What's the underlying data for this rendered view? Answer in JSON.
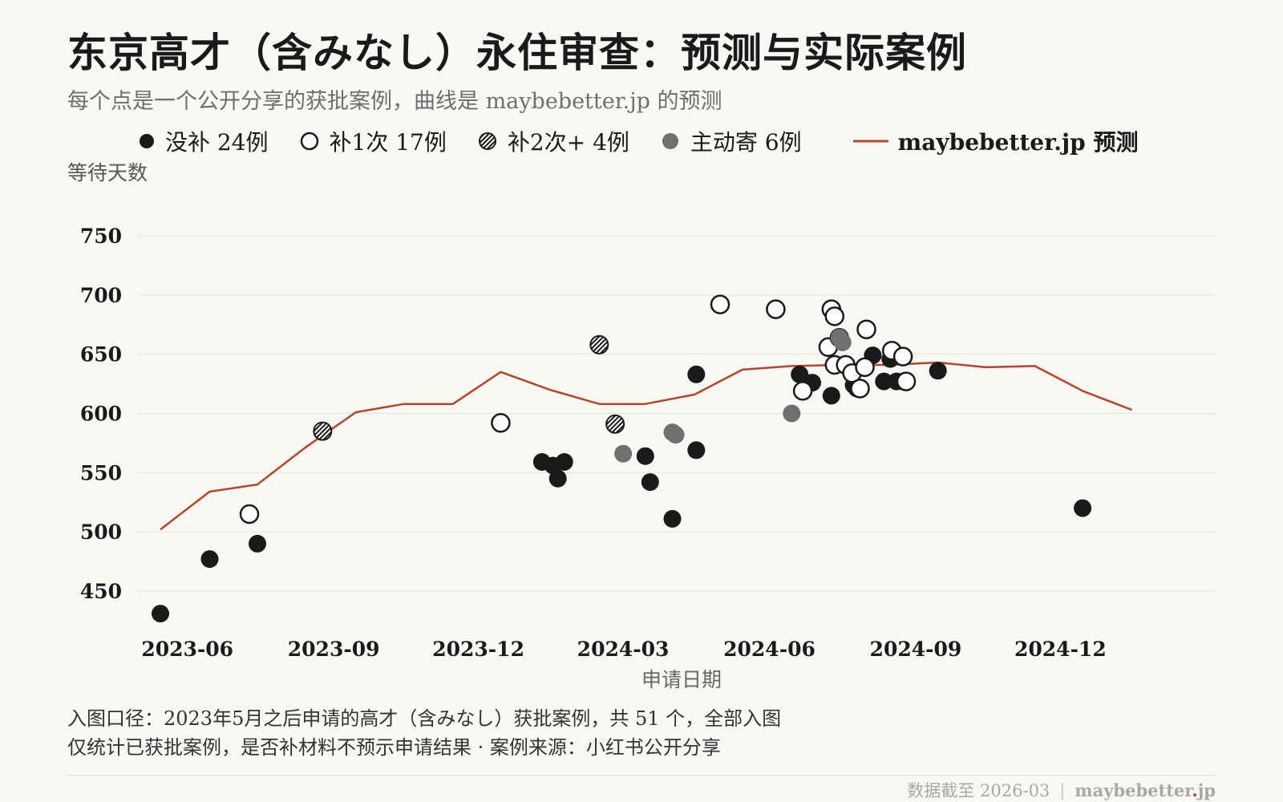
{
  "title": "东京高才（含みなし）永住审查：预测与实际案例",
  "subtitle": "每个点是一个公开分享的获批案例，曲线是 maybebetter.jp 的预测",
  "legend": {
    "no_supplement": "没补 24例",
    "supplement_once": "补1次 17例",
    "supplement_twice_plus": "补2次+ 4例",
    "voluntary_mail": "主动寄 6例",
    "prediction": "maybebetter.jp 预测"
  },
  "colors": {
    "no_supplement": "#1a1a1a",
    "supplement_once": "#ffffff",
    "voluntary_mail": "#707070",
    "prediction": "#b5452b",
    "gridline": "#e6e3dd",
    "background": "#faf8f4"
  },
  "notes": {
    "line1": "入图口径：2023年5月之后申请的高才（含みなし）获批案例，共 51 个，全部入图",
    "line2": "仅统计已获批案例，是否补材料不预示申请结果 · 案例来源：小红书公开分享"
  },
  "footer": {
    "data_date": "数据截至 2026-03",
    "separator": "|",
    "brand": "maybebetter",
    "brand_dot": ".",
    "brand_suffix": "jp"
  },
  "chart_data": {
    "type": "scatter",
    "xlabel": "申请日期",
    "ylabel": "等待天数",
    "x_ticks": [
      "2023-06",
      "2023-09",
      "2023-12",
      "2024-03",
      "2024-06",
      "2024-09",
      "2024-12"
    ],
    "xlim": [
      "2023-05-15",
      "2025-02-20"
    ],
    "y_ticks": [
      450,
      500,
      550,
      600,
      650,
      700,
      750
    ],
    "ylim": [
      420,
      760
    ],
    "grid": "horizontal",
    "prediction_line": {
      "name": "maybebetter.jp 预测",
      "points": [
        [
          "2023-05-15",
          502
        ],
        [
          "2023-06-15",
          534
        ],
        [
          "2023-07-15",
          540
        ],
        [
          "2023-08-15",
          572
        ],
        [
          "2023-09-15",
          601
        ],
        [
          "2023-10-15",
          608
        ],
        [
          "2023-11-15",
          608
        ],
        [
          "2023-12-15",
          635
        ],
        [
          "2024-01-15",
          620
        ],
        [
          "2024-02-15",
          608
        ],
        [
          "2024-03-15",
          608
        ],
        [
          "2024-04-15",
          616
        ],
        [
          "2024-05-15",
          637
        ],
        [
          "2024-06-15",
          640
        ],
        [
          "2024-07-15",
          641
        ],
        [
          "2024-08-15",
          641
        ],
        [
          "2024-09-15",
          643
        ],
        [
          "2024-10-15",
          639
        ],
        [
          "2024-11-15",
          640
        ],
        [
          "2024-12-15",
          619
        ],
        [
          "2025-01-15",
          603
        ]
      ]
    },
    "series": [
      {
        "name": "没补 24例",
        "style": "filled-dark",
        "points": [
          [
            "2023-05-15",
            431
          ],
          [
            "2023-06-15",
            477
          ],
          [
            "2023-07-15",
            490
          ],
          [
            "2024-01-10",
            559
          ],
          [
            "2024-01-17",
            556
          ],
          [
            "2024-01-20",
            545
          ],
          [
            "2024-01-24",
            559
          ],
          [
            "2024-03-15",
            564
          ],
          [
            "2024-03-18",
            542
          ],
          [
            "2024-04-01",
            511
          ],
          [
            "2024-04-16",
            633
          ],
          [
            "2024-04-16",
            569
          ],
          [
            "2024-06-20",
            633
          ],
          [
            "2024-06-28",
            626
          ],
          [
            "2024-07-10",
            615
          ],
          [
            "2024-07-24",
            624
          ],
          [
            "2024-07-26",
            621
          ],
          [
            "2024-08-05",
            649
          ],
          [
            "2024-08-12",
            627
          ],
          [
            "2024-08-20",
            627
          ],
          [
            "2024-08-24",
            627
          ],
          [
            "2024-08-16",
            646
          ],
          [
            "2024-09-15",
            636
          ],
          [
            "2024-12-15",
            520
          ]
        ]
      },
      {
        "name": "补1次 17例",
        "style": "hollow",
        "points": [
          [
            "2023-07-10",
            515
          ],
          [
            "2023-12-15",
            592
          ],
          [
            "2024-05-01",
            692
          ],
          [
            "2024-06-05",
            688
          ],
          [
            "2024-06-22",
            619
          ],
          [
            "2024-07-10",
            688
          ],
          [
            "2024-07-08",
            656
          ],
          [
            "2024-07-12",
            682
          ],
          [
            "2024-07-12",
            641
          ],
          [
            "2024-07-19",
            641
          ],
          [
            "2024-07-23",
            634
          ],
          [
            "2024-07-28",
            621
          ],
          [
            "2024-08-01",
            671
          ],
          [
            "2024-07-31",
            639
          ],
          [
            "2024-08-17",
            653
          ],
          [
            "2024-08-24",
            648
          ],
          [
            "2024-08-26",
            627
          ]
        ]
      },
      {
        "name": "补2次+ 4例",
        "style": "hatched",
        "points": [
          [
            "2023-08-25",
            585
          ],
          [
            "2024-02-15",
            658
          ],
          [
            "2024-02-25",
            591
          ],
          [
            "2024-07-15",
            664
          ]
        ]
      },
      {
        "name": "主动寄 6例",
        "style": "filled-grey",
        "points": [
          [
            "2024-03-01",
            566
          ],
          [
            "2024-04-01",
            584
          ],
          [
            "2024-04-03",
            582
          ],
          [
            "2024-06-15",
            600
          ],
          [
            "2024-07-15",
            664
          ],
          [
            "2024-07-17",
            660
          ]
        ]
      }
    ]
  }
}
